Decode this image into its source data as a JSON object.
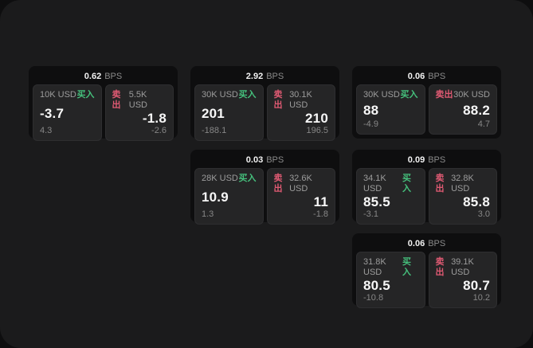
{
  "colors": {
    "panel_bg": "#1b1b1c",
    "card_bg": "#0e0e0f",
    "subcard_bg": "#252526",
    "buy_green": "#45c07c",
    "sell_red": "#e05a73"
  },
  "cards": [
    {
      "row": 1,
      "col": 1,
      "bps": "0.62",
      "unit": "BPS",
      "buy": {
        "amount": "10K USD",
        "action": "买入",
        "price": "-3.7",
        "delta": "4.3"
      },
      "sell": {
        "amount": "5.5K USD",
        "action": "卖出",
        "price": "-1.8",
        "delta": "-2.6"
      }
    },
    {
      "row": 1,
      "col": 2,
      "bps": "2.92",
      "unit": "BPS",
      "buy": {
        "amount": "30K USD",
        "action": "买入",
        "price": "201",
        "delta": "-188.1"
      },
      "sell": {
        "amount": "30.1K USD",
        "action": "卖出",
        "price": "210",
        "delta": "196.5"
      }
    },
    {
      "row": 1,
      "col": 3,
      "bps": "0.06",
      "unit": "BPS",
      "buy": {
        "amount": "30K USD",
        "action": "买入",
        "price": "88",
        "delta": "-4.9"
      },
      "sell": {
        "amount": "30K USD",
        "action": "卖出",
        "price": "88.2",
        "delta": "4.7"
      }
    },
    {
      "row": 2,
      "col": 2,
      "bps": "0.03",
      "unit": "BPS",
      "buy": {
        "amount": "28K USD",
        "action": "买入",
        "price": "10.9",
        "delta": "1.3"
      },
      "sell": {
        "amount": "32.6K USD",
        "action": "卖出",
        "price": "11",
        "delta": "-1.8"
      }
    },
    {
      "row": 2,
      "col": 3,
      "bps": "0.09",
      "unit": "BPS",
      "buy": {
        "amount": "34.1K USD",
        "action": "买入",
        "price": "85.5",
        "delta": "-3.1"
      },
      "sell": {
        "amount": "32.8K USD",
        "action": "卖出",
        "price": "85.8",
        "delta": "3.0"
      }
    },
    {
      "row": 3,
      "col": 3,
      "bps": "0.06",
      "unit": "BPS",
      "buy": {
        "amount": "31.8K USD",
        "action": "买入",
        "price": "80.5",
        "delta": "-10.8"
      },
      "sell": {
        "amount": "39.1K USD",
        "action": "卖出",
        "price": "80.7",
        "delta": "10.2"
      }
    }
  ]
}
